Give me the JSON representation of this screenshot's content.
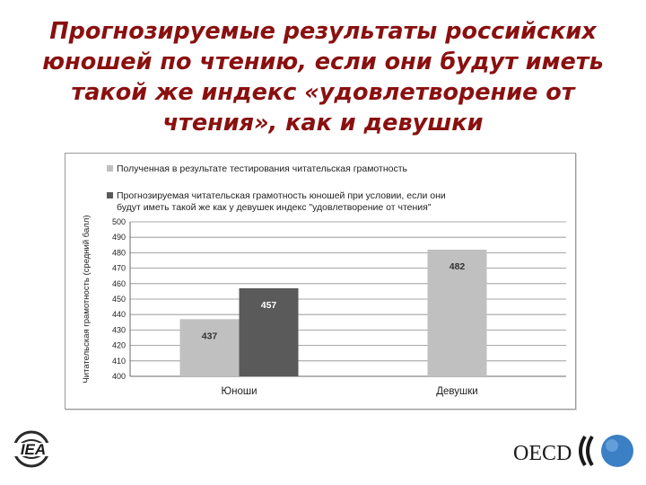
{
  "slide": {
    "title_lines": [
      "Прогнозируемые результаты российских",
      "юношей по чтению, если они будут иметь",
      "такой же индекс «удовлетворение от",
      "чтения», как и девушки"
    ]
  },
  "logos": {
    "left_text": "IEA",
    "right_text": "OECD"
  },
  "colors": {
    "title": "#8a1010",
    "series_observed": "#c0c0c0",
    "series_projected": "#5a5a5a"
  },
  "chart_data": {
    "type": "bar",
    "categories": [
      "Юноши",
      "Девушки"
    ],
    "series": [
      {
        "name": "Полученная в результате тестирования читательская грамотность",
        "name_lines": [
          "Полученная в результате тестирования читательская грамотность"
        ],
        "values": [
          437,
          482
        ],
        "color": "#c0c0c0",
        "label_color": "#333333"
      },
      {
        "name": "Прогнозируемая читательская грамотность юношей при условии, если они будут иметь такой же как у девушек индекс \"удовлетворение от чтения\"",
        "name_lines": [
          "Прогнозируемая читательская грамотность юношей при условии, если они",
          "будут иметь такой же как у девушек индекс \"удовлетворение от чтения\""
        ],
        "values": [
          457,
          null
        ],
        "color": "#5a5a5a",
        "label_color": "#ffffff"
      }
    ],
    "title": "",
    "xlabel": "",
    "ylabel": "Читательская грамотность (средний балл)",
    "ylim": [
      400,
      500
    ],
    "ytick_step": 10,
    "yticks": [
      "400",
      "410",
      "420",
      "430",
      "440",
      "450",
      "460",
      "470",
      "480",
      "490",
      "500"
    ],
    "grid": true,
    "legend_position": "top"
  }
}
